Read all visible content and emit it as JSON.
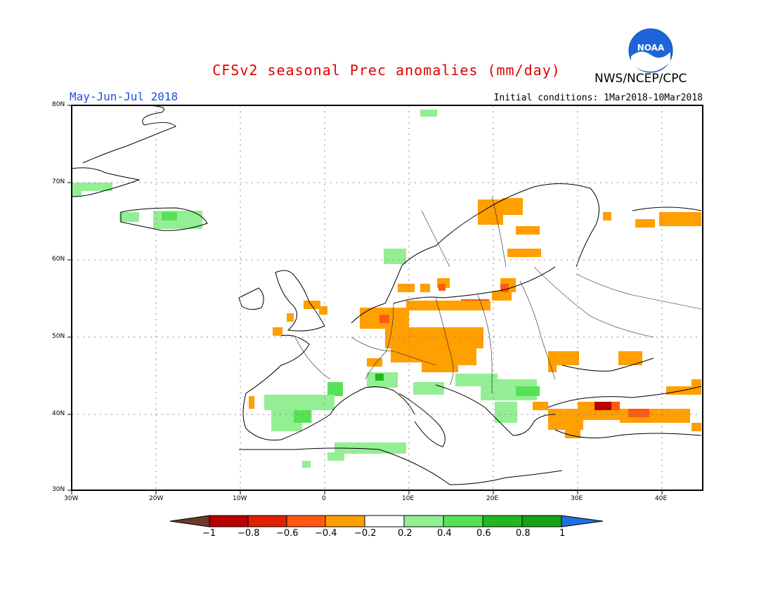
{
  "title": "CFSv2 seasonal Prec anomalies (mm/day)",
  "period": "May-Jun-Jul 2018",
  "initial_conditions": "Initial conditions: 1Mar2018-10Mar2018",
  "agency": "NWS/NCEP/CPC",
  "logo_text": "NOAA",
  "axes": {
    "lon_labels": [
      "30W",
      "20W",
      "10W",
      "0",
      "10E",
      "20E",
      "30E",
      "40E"
    ],
    "lat_labels": [
      "80N",
      "70N",
      "60N",
      "50N",
      "40N",
      "30N"
    ]
  },
  "colorbar": {
    "labels": [
      "−1",
      "−0.8",
      "−0.6",
      "−0.4",
      "−0.2",
      "0.2",
      "0.4",
      "0.6",
      "0.8",
      "1"
    ],
    "colors": [
      "#6b3a2a",
      "#b80000",
      "#e02000",
      "#ff5a10",
      "#ff9f00",
      "#ffffff",
      "#94ee94",
      "#56e256",
      "#20b820",
      "#17a317",
      "#1f6fe0"
    ]
  },
  "colors": {
    "title": "#e00000",
    "period": "#1f4fe0",
    "grid": "#888888"
  }
}
